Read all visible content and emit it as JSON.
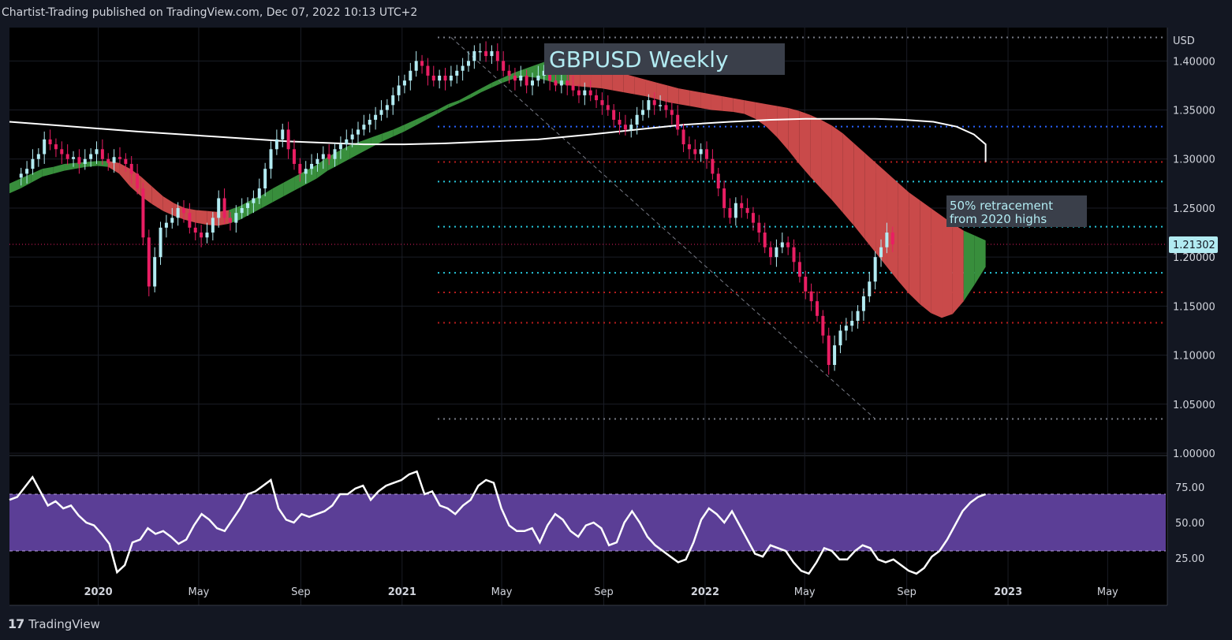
{
  "header": {
    "publisher_line": "Chartist-Trading published on TradingView.com, Dec 07, 2022 10:13 UTC+2"
  },
  "footer": {
    "logo_mark": "17",
    "logo_text": "TradingView"
  },
  "chart_data": [
    {
      "type": "candlestick",
      "title": "GBPUSD Weekly",
      "symbol": "GBPUSD",
      "timeframe": "Weekly",
      "currency_label": "USD",
      "ylim": [
        1.0,
        1.43
      ],
      "y_ticks": [
        "1.40000",
        "1.35000",
        "1.30000",
        "1.25000",
        "1.20000",
        "1.15000",
        "1.10000",
        "1.05000",
        "1.00000"
      ],
      "y_tick_values": [
        1.4,
        1.35,
        1.3,
        1.25,
        1.2,
        1.15,
        1.1,
        1.05,
        1.0
      ],
      "x_ticks": [
        "2020",
        "May",
        "Sep",
        "2021",
        "May",
        "Sep",
        "2022",
        "May",
        "Sep",
        "2023",
        "May"
      ],
      "x_tick_dates": [
        "2020-01-01",
        "2020-05-01",
        "2020-09-01",
        "2021-01-01",
        "2021-05-01",
        "2021-09-01",
        "2022-01-01",
        "2022-05-01",
        "2022-09-01",
        "2023-01-01",
        "2023-05-01"
      ],
      "x_range": [
        "2019-09-16",
        "2023-07-10"
      ],
      "last_price": "1.21302",
      "last_price_value": 1.21302,
      "closes_weekly": [
        1.285,
        1.29,
        1.3,
        1.305,
        1.32,
        1.315,
        1.31,
        1.305,
        1.3,
        1.302,
        1.295,
        1.3,
        1.305,
        1.31,
        1.3,
        1.296,
        1.302,
        1.3,
        1.295,
        1.285,
        1.27,
        1.22,
        1.17,
        1.2,
        1.23,
        1.235,
        1.24,
        1.25,
        1.245,
        1.23,
        1.225,
        1.22,
        1.225,
        1.24,
        1.26,
        1.24,
        1.235,
        1.245,
        1.25,
        1.255,
        1.26,
        1.27,
        1.29,
        1.31,
        1.32,
        1.33,
        1.31,
        1.295,
        1.285,
        1.29,
        1.295,
        1.3,
        1.305,
        1.3,
        1.31,
        1.315,
        1.32,
        1.325,
        1.33,
        1.335,
        1.34,
        1.345,
        1.35,
        1.355,
        1.365,
        1.375,
        1.38,
        1.39,
        1.4,
        1.395,
        1.385,
        1.38,
        1.385,
        1.38,
        1.385,
        1.39,
        1.395,
        1.4,
        1.41,
        1.41,
        1.405,
        1.41,
        1.4,
        1.39,
        1.385,
        1.38,
        1.385,
        1.375,
        1.38,
        1.385,
        1.39,
        1.38,
        1.375,
        1.38,
        1.375,
        1.37,
        1.365,
        1.37,
        1.365,
        1.36,
        1.355,
        1.35,
        1.34,
        1.335,
        1.33,
        1.335,
        1.345,
        1.35,
        1.36,
        1.355,
        1.355,
        1.35,
        1.345,
        1.33,
        1.315,
        1.31,
        1.305,
        1.31,
        1.3,
        1.285,
        1.27,
        1.25,
        1.24,
        1.255,
        1.25,
        1.245,
        1.235,
        1.225,
        1.21,
        1.2,
        1.21,
        1.215,
        1.21,
        1.195,
        1.18,
        1.165,
        1.155,
        1.14,
        1.12,
        1.09,
        1.11,
        1.125,
        1.13,
        1.135,
        1.145,
        1.16,
        1.175,
        1.2,
        1.21,
        1.225,
        1.21302
      ],
      "ema_upper_band": [
        1.275,
        1.28,
        1.285,
        1.29,
        1.292,
        1.295,
        1.296,
        1.297,
        1.298,
        1.298,
        1.296,
        1.29,
        1.282,
        1.272,
        1.262,
        1.255,
        1.25,
        1.248,
        1.247,
        1.246,
        1.248,
        1.252,
        1.258,
        1.263,
        1.27,
        1.276,
        1.282,
        1.288,
        1.294,
        1.302,
        1.308,
        1.314,
        1.318,
        1.322,
        1.326,
        1.33,
        1.335,
        1.34,
        1.345,
        1.35,
        1.356,
        1.36,
        1.366,
        1.372,
        1.378,
        1.383,
        1.388,
        1.392,
        1.396,
        1.4,
        1.403,
        1.403,
        1.402,
        1.399,
        1.395,
        1.391,
        1.387,
        1.384,
        1.381,
        1.378,
        1.375,
        1.372,
        1.37,
        1.368,
        1.366,
        1.364,
        1.362,
        1.36,
        1.358,
        1.356,
        1.354,
        1.352,
        1.349,
        1.345,
        1.34,
        1.334,
        1.326,
        1.316,
        1.306,
        1.296,
        1.286,
        1.276,
        1.266,
        1.258,
        1.25,
        1.242,
        1.234,
        1.227,
        1.222,
        1.217
      ],
      "ema_lower_band": [
        1.265,
        1.27,
        1.276,
        1.282,
        1.285,
        1.288,
        1.29,
        1.292,
        1.293,
        1.292,
        1.285,
        1.272,
        1.262,
        1.254,
        1.247,
        1.242,
        1.238,
        1.235,
        1.233,
        1.232,
        1.234,
        1.238,
        1.244,
        1.25,
        1.256,
        1.262,
        1.268,
        1.274,
        1.28,
        1.288,
        1.294,
        1.3,
        1.306,
        1.312,
        1.318,
        1.323,
        1.328,
        1.334,
        1.34,
        1.346,
        1.352,
        1.357,
        1.362,
        1.368,
        1.373,
        1.378,
        1.382,
        1.384,
        1.383,
        1.38,
        1.377,
        1.375,
        1.374,
        1.373,
        1.372,
        1.37,
        1.368,
        1.366,
        1.364,
        1.361,
        1.358,
        1.356,
        1.354,
        1.352,
        1.35,
        1.349,
        1.348,
        1.346,
        1.341,
        1.333,
        1.322,
        1.309,
        1.295,
        1.282,
        1.27,
        1.258,
        1.245,
        1.232,
        1.218,
        1.204,
        1.19,
        1.176,
        1.163,
        1.152,
        1.143,
        1.138,
        1.142,
        1.155,
        1.172,
        1.19
      ],
      "sma_long": [
        1.338,
        1.334,
        1.328,
        1.323,
        1.318,
        1.315,
        1.315,
        1.316,
        1.318,
        1.32,
        1.325,
        1.33,
        1.335,
        1.338,
        1.34,
        1.341,
        1.341,
        1.341,
        1.34,
        1.338,
        1.333,
        1.325,
        1.315,
        1.297
      ],
      "sma_long_dates": [
        "2019-09-16",
        "2019-11-18",
        "2020-02-17",
        "2020-05-18",
        "2020-08-17",
        "2020-11-16",
        "2021-01-04",
        "2021-02-22",
        "2021-04-19",
        "2021-06-14",
        "2021-08-16",
        "2021-10-11",
        "2021-12-06",
        "2022-01-31",
        "2022-03-21",
        "2022-05-02",
        "2022-06-13",
        "2022-07-25",
        "2022-08-29",
        "2022-10-03",
        "2022-10-31",
        "2022-11-21",
        "2022-12-05",
        "2022-12-05"
      ],
      "levels": [
        {
          "value": 1.424,
          "color": "#787b86"
        },
        {
          "value": 1.333,
          "color": "#2962ff"
        },
        {
          "value": 1.297,
          "color": "#b71c1c"
        },
        {
          "value": 1.277,
          "color": "#26c6da"
        },
        {
          "value": 1.231,
          "color": "#26c6da"
        },
        {
          "value": 1.184,
          "color": "#26c6da"
        },
        {
          "value": 1.164,
          "color": "#b71c1c"
        },
        {
          "value": 1.133,
          "color": "#b71c1c"
        },
        {
          "value": 1.035,
          "color": "#787b86"
        }
      ],
      "annotation": {
        "text_line1": "50% retracement",
        "text_line2": "from 2020 highs"
      },
      "trendline": {
        "from": [
          "2021-03-01",
          1.424
        ],
        "to": [
          "2022-07-25",
          1.035
        ]
      },
      "colors": {
        "up": "#b2ebf2",
        "down": "#e91e63",
        "bull_band": "#388e3c",
        "bear_band": "#c94a4a",
        "sma": "#ffffff"
      }
    },
    {
      "type": "line",
      "indicator": "RSI",
      "ylim": [
        10,
        95
      ],
      "y_ticks": [
        "75.00",
        "50.00",
        "25.00"
      ],
      "y_tick_values": [
        75,
        50,
        25
      ],
      "band": [
        30,
        70
      ],
      "band_color": "#5b3e96",
      "values": [
        66,
        68,
        75,
        82,
        72,
        62,
        65,
        60,
        62,
        55,
        50,
        48,
        42,
        35,
        15,
        20,
        36,
        38,
        46,
        42,
        44,
        40,
        35,
        38,
        48,
        56,
        52,
        46,
        44,
        52,
        60,
        70,
        72,
        76,
        80,
        60,
        52,
        50,
        56,
        54,
        56,
        58,
        62,
        70,
        70,
        74,
        76,
        66,
        72,
        76,
        78,
        80,
        84,
        86,
        70,
        72,
        62,
        60,
        56,
        62,
        66,
        76,
        80,
        78,
        60,
        48,
        44,
        44,
        46,
        36,
        48,
        56,
        52,
        44,
        40,
        48,
        50,
        46,
        34,
        36,
        50,
        58,
        50,
        40,
        34,
        30,
        26,
        22,
        24,
        36,
        52,
        60,
        56,
        50,
        58,
        48,
        38,
        28,
        26,
        34,
        32,
        30,
        22,
        16,
        14,
        22,
        32,
        30,
        24,
        24,
        30,
        34,
        32,
        24,
        22,
        24,
        20,
        16,
        14,
        18,
        26,
        30,
        38,
        48,
        58,
        64,
        68,
        70
      ],
      "colors": {
        "line": "#ffffff"
      }
    }
  ]
}
